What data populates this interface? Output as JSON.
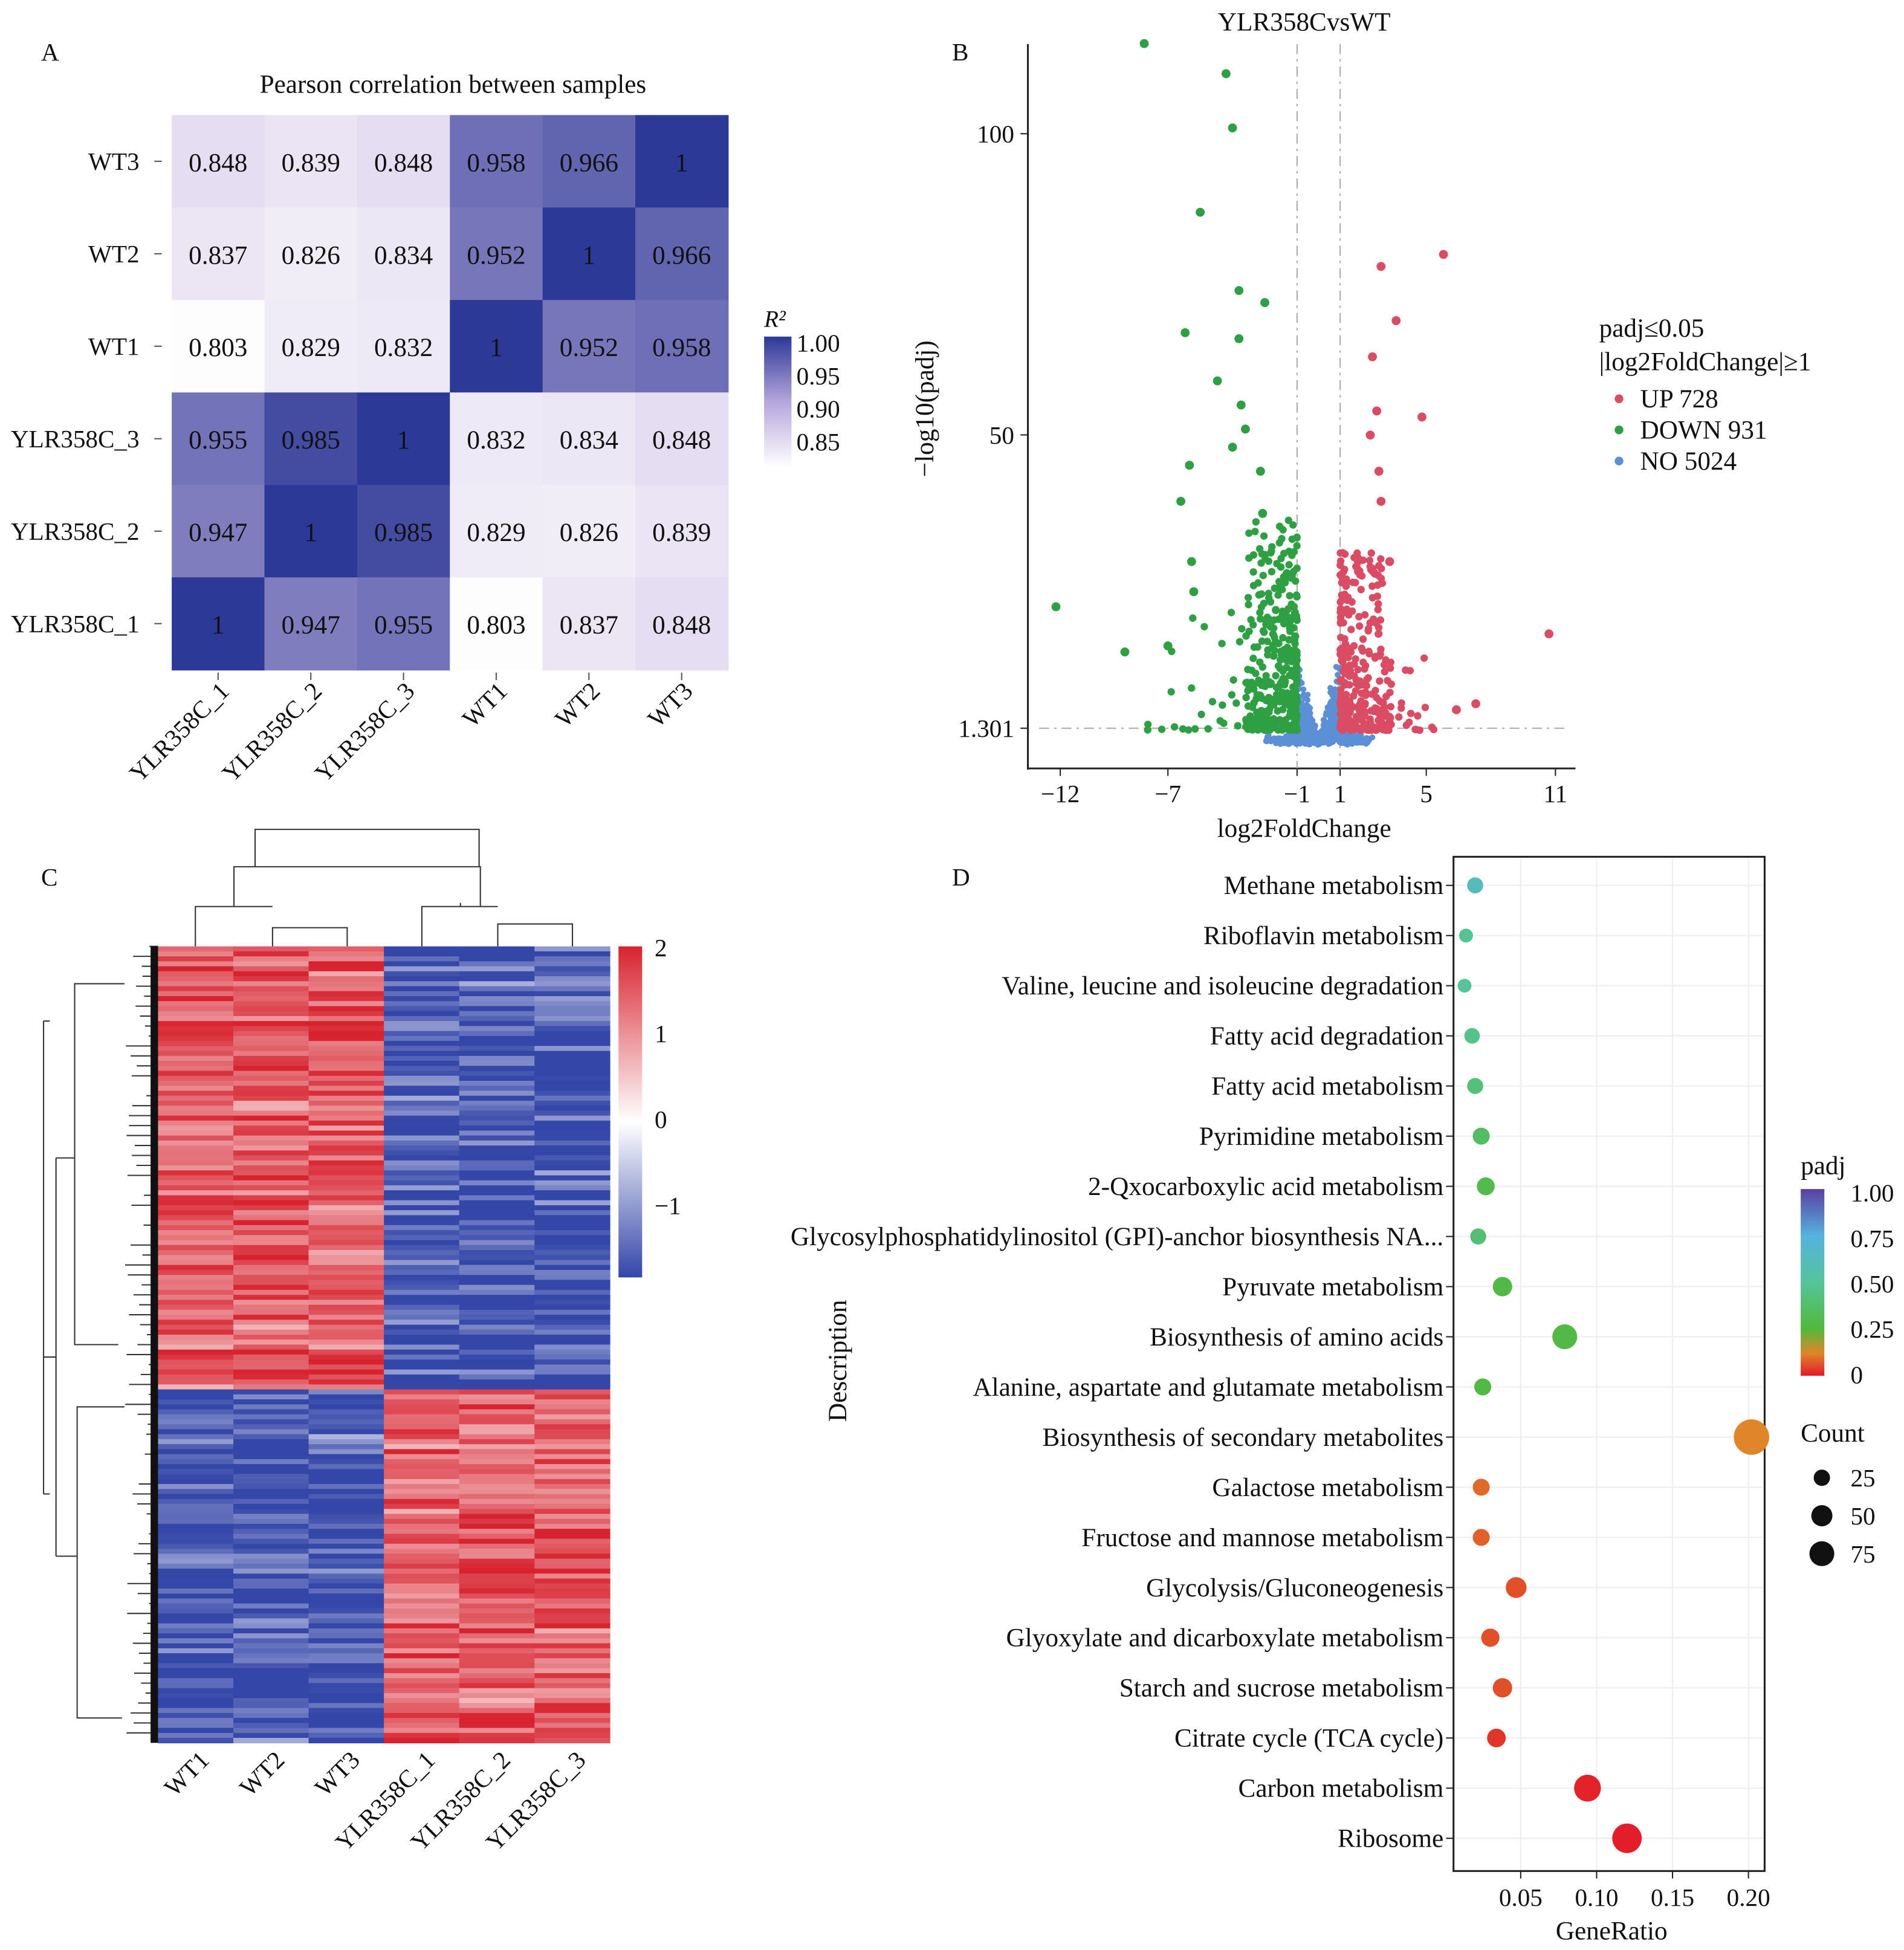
{
  "panel_labels": [
    "A",
    "B",
    "C",
    "D"
  ],
  "chart_data": [
    {
      "type": "heatmap",
      "panel": "A",
      "title": "Pearson correlation between samples",
      "rows": [
        "WT3",
        "WT2",
        "WT1",
        "YLR358C_3",
        "YLR358C_2",
        "YLR358C_1"
      ],
      "columns": [
        "YLR358C_1",
        "YLR358C_2",
        "YLR358C_3",
        "WT1",
        "WT2",
        "WT3"
      ],
      "values": [
        [
          0.848,
          0.839,
          0.848,
          0.958,
          0.966,
          1
        ],
        [
          0.837,
          0.826,
          0.834,
          0.952,
          1,
          0.966
        ],
        [
          0.803,
          0.829,
          0.832,
          1,
          0.952,
          0.958
        ],
        [
          0.955,
          0.985,
          1,
          0.832,
          0.834,
          0.848
        ],
        [
          0.947,
          1,
          0.985,
          0.829,
          0.826,
          0.839
        ],
        [
          1,
          0.947,
          0.955,
          0.803,
          0.837,
          0.848
        ]
      ],
      "colorbar": {
        "title": "R²",
        "ticks": [
          "1.00",
          "0.95",
          "0.90",
          "0.85"
        ],
        "range": [
          0.8,
          1.0
        ],
        "low_color": "#ffffff",
        "high_color": "#2c3996"
      }
    },
    {
      "type": "scatter",
      "panel": "B",
      "title": "YLR358CvsWT",
      "xlabel": "log2FoldChange",
      "ylabel": "−log10(padj)",
      "xticks": [
        "−12",
        "−7",
        "−1",
        "1",
        "5",
        "11"
      ],
      "xtick_values": [
        -12,
        -7,
        -1,
        1,
        5,
        11
      ],
      "yticks": [
        "1.301",
        "50",
        "100"
      ],
      "ytick_values": [
        1.301,
        50,
        100
      ],
      "xlim": [
        -13.5,
        12
      ],
      "ylim": [
        -4,
        116
      ],
      "thresholds": {
        "x": [
          -1,
          1
        ],
        "y": 1.301
      },
      "legend": {
        "title_lines": [
          "padj≤0.05",
          "|log2FoldChange|≥1"
        ],
        "placement": "right",
        "entries": [
          {
            "label": "UP 728",
            "color": "#d94c63"
          },
          {
            "label": "DOWN 931",
            "color": "#2ea043"
          },
          {
            "label": "NO 5024",
            "color": "#5b8fd6"
          }
        ]
      },
      "series": [
        {
          "name": "UP",
          "count": 728,
          "color": "#d94c63",
          "outliers": [
            [
              5.8,
              81
            ],
            [
              2.9,
              79
            ],
            [
              3.6,
              70
            ],
            [
              2.5,
              64
            ],
            [
              2.7,
              55
            ],
            [
              4.8,
              54
            ],
            [
              2.4,
              51
            ],
            [
              10.7,
              18
            ],
            [
              7.3,
              6.4
            ],
            [
              6.4,
              5.4
            ],
            [
              2.9,
              40
            ],
            [
              3.3,
              30
            ],
            [
              2.8,
              45
            ]
          ]
        },
        {
          "name": "DOWN",
          "count": 931,
          "color": "#2ea043",
          "outliers": [
            [
              -8.1,
              116
            ],
            [
              -4.3,
              111
            ],
            [
              -4.0,
              102
            ],
            [
              -5.5,
              88
            ],
            [
              -3.7,
              75
            ],
            [
              -2.5,
              73
            ],
            [
              -6.2,
              68
            ],
            [
              -3.7,
              67
            ],
            [
              -4.7,
              60
            ],
            [
              -3.6,
              56
            ],
            [
              -4.0,
              49
            ],
            [
              -3.4,
              52
            ],
            [
              -6.0,
              46
            ],
            [
              -2.7,
              45
            ],
            [
              -6.4,
              40
            ],
            [
              -2.6,
              38
            ],
            [
              -12.2,
              22.5
            ],
            [
              -9.0,
              15
            ],
            [
              -7.0,
              16
            ],
            [
              -5.8,
              25
            ],
            [
              -5.9,
              30
            ]
          ]
        },
        {
          "name": "NO",
          "count": 5024,
          "color": "#5b8fd6"
        }
      ]
    },
    {
      "type": "heatmap",
      "panel": "C",
      "columns": [
        "WT1",
        "WT2",
        "WT3",
        "YLR358C_1",
        "YLR358C_2",
        "YLR358C_3"
      ],
      "colorbar": {
        "ticks": [
          "2",
          "1",
          "0",
          "−1"
        ],
        "tick_values": [
          2,
          1,
          0,
          -1
        ],
        "range": [
          -1.8,
          2
        ],
        "low_color": "#3446a8",
        "mid_color": "#ffffff",
        "high_color": "#d7232f"
      },
      "clusters": [
        {
          "pattern": "WT high / YLR358C low",
          "wt": 1.3,
          "ylr": -1.2
        },
        {
          "pattern": "WT low / YLR358C high",
          "wt": -1.2,
          "ylr": 1.3
        }
      ]
    },
    {
      "type": "scatter",
      "panel": "D",
      "xlabel": "GeneRatio",
      "ylabel": "Description",
      "xticks": [
        "0.05",
        "0.10",
        "0.15",
        "0.20"
      ],
      "xtick_values": [
        0.05,
        0.1,
        0.15,
        0.2
      ],
      "xlim": [
        0.006,
        0.212
      ],
      "grid": true,
      "color_legend": {
        "title": "padj",
        "ticks": [
          "1.00",
          "0.75",
          "0.50",
          "0.25",
          "0"
        ],
        "tick_values": [
          1,
          0.75,
          0.5,
          0.25,
          0
        ]
      },
      "size_legend": {
        "title": "Count",
        "ticks": [
          "25",
          "50",
          "75"
        ],
        "tick_values": [
          25,
          50,
          75
        ]
      },
      "terms": [
        {
          "label": "Methane metabolism",
          "gene_ratio": 0.02,
          "padj": 0.62,
          "count": 10
        },
        {
          "label": "Riboflavin metabolism",
          "gene_ratio": 0.014,
          "padj": 0.48,
          "count": 6
        },
        {
          "label": "Valine, leucine and isoleucine degradation",
          "gene_ratio": 0.013,
          "padj": 0.5,
          "count": 6
        },
        {
          "label": "Fatty acid degradation",
          "gene_ratio": 0.018,
          "padj": 0.46,
          "count": 9
        },
        {
          "label": "Fatty acid metabolism",
          "gene_ratio": 0.02,
          "padj": 0.42,
          "count": 10
        },
        {
          "label": "Pyrimidine metabolism",
          "gene_ratio": 0.024,
          "padj": 0.36,
          "count": 12
        },
        {
          "label": "2-Qxocarboxylic acid metabolism",
          "gene_ratio": 0.027,
          "padj": 0.3,
          "count": 14
        },
        {
          "label": "Glycosylphosphatidylinositol (GPI)-anchor biosynthesis NA...",
          "gene_ratio": 0.022,
          "padj": 0.4,
          "count": 10
        },
        {
          "label": "Pyruvate metabolism",
          "gene_ratio": 0.038,
          "padj": 0.28,
          "count": 18
        },
        {
          "label": "Biosynthesis of amino acids",
          "gene_ratio": 0.079,
          "padj": 0.28,
          "count": 36
        },
        {
          "label": "Alanine, aspartate and glutamate metabolism",
          "gene_ratio": 0.025,
          "padj": 0.27,
          "count": 12
        },
        {
          "label": "Biosynthesis of secondary metabolites",
          "gene_ratio": 0.202,
          "padj": 0.12,
          "count": 88
        },
        {
          "label": "Galactose metabolism",
          "gene_ratio": 0.024,
          "padj": 0.09,
          "count": 12
        },
        {
          "label": "Fructose and mannose metabolism",
          "gene_ratio": 0.024,
          "padj": 0.08,
          "count": 12
        },
        {
          "label": "Glycolysis/Gluconeogenesis",
          "gene_ratio": 0.047,
          "padj": 0.06,
          "count": 22
        },
        {
          "label": "Glyoxylate and dicarboxylate metabolism",
          "gene_ratio": 0.03,
          "padj": 0.06,
          "count": 15
        },
        {
          "label": "Starch and sucrose metabolism",
          "gene_ratio": 0.038,
          "padj": 0.06,
          "count": 18
        },
        {
          "label": "Citrate cycle (TCA cycle)",
          "gene_ratio": 0.034,
          "padj": 0.03,
          "count": 16
        },
        {
          "label": "Carbon metabolism",
          "gene_ratio": 0.094,
          "padj": 0.01,
          "count": 44
        },
        {
          "label": "Ribosome",
          "gene_ratio": 0.12,
          "padj": 0.005,
          "count": 56
        }
      ]
    }
  ]
}
